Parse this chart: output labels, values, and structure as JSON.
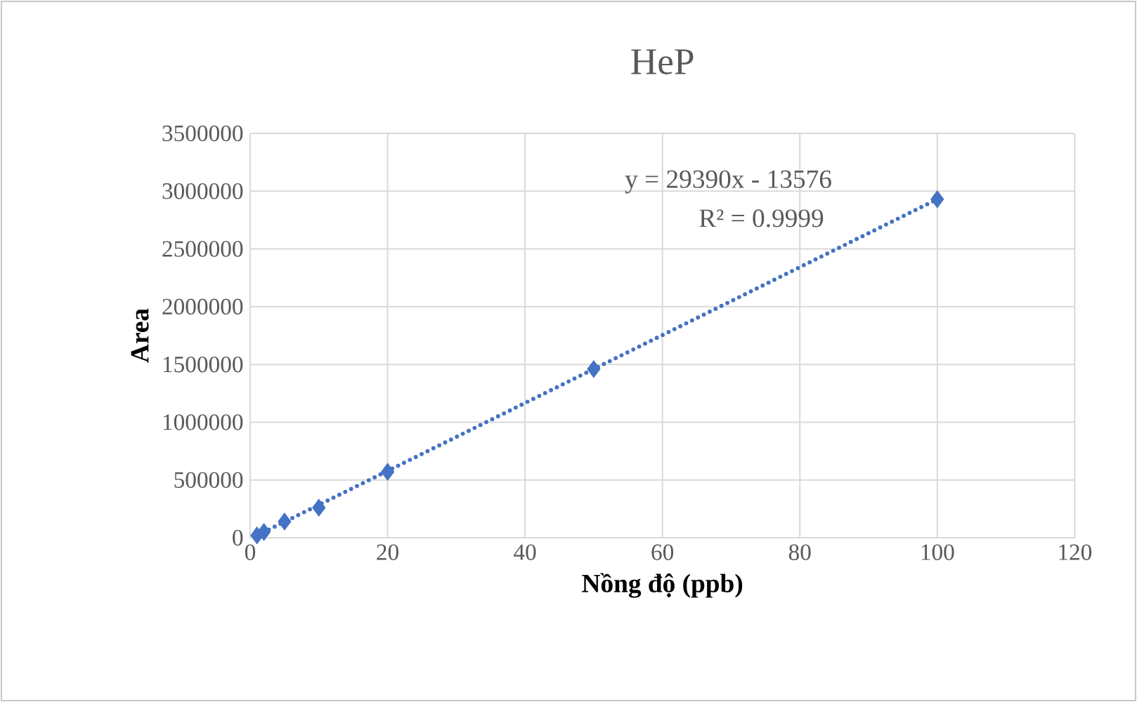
{
  "chart_data": {
    "type": "scatter",
    "title": "HeP",
    "xlabel": "Nồng độ (ppb)",
    "ylabel": "Area",
    "series": [
      {
        "color": "#4472c4",
        "marker": "diamond",
        "x": [
          1,
          2,
          5,
          10,
          20,
          50,
          100
        ],
        "values": [
          20000,
          50000,
          140000,
          260000,
          570000,
          1460000,
          2930000
        ]
      },
      {
        "type": "line",
        "color": "#4472c4",
        "line_style": "dotted",
        "marker": "none",
        "x": [
          1,
          100
        ],
        "values": [
          20000,
          2930000
        ]
      }
    ],
    "xlim": [
      0,
      120
    ],
    "ylim": [
      0,
      3500000
    ],
    "xticks": [
      0,
      20,
      40,
      60,
      80,
      100,
      120
    ],
    "yticks": [
      0,
      500000,
      1000000,
      1500000,
      2000000,
      2500000,
      3000000,
      3500000
    ],
    "grid": true,
    "annotations": [
      "y = 29390x - 13576",
      "R² = 0.9999"
    ]
  }
}
